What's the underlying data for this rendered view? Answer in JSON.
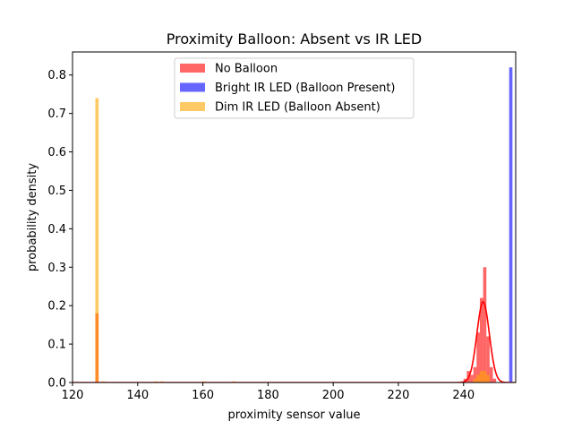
{
  "chart_data": {
    "type": "bar",
    "title": "Proximity Balloon: Absent vs IR LED",
    "xlabel": "proximity sensor value",
    "ylabel": "probability density",
    "xlim": [
      120,
      256
    ],
    "ylim": [
      0,
      0.86
    ],
    "xticks": [
      120,
      140,
      160,
      180,
      200,
      220,
      240
    ],
    "yticks": [
      0.0,
      0.1,
      0.2,
      0.3,
      0.4,
      0.5,
      0.6,
      0.7,
      0.8
    ],
    "bin_width": 1,
    "grid": false,
    "legend_position": "top-center",
    "series": [
      {
        "name": "No Balloon",
        "color": "#ff0000",
        "opacity": 0.6,
        "bins": [
          {
            "x": 127,
            "y": 0.18
          },
          {
            "x": 239,
            "y": 0.003
          },
          {
            "x": 240,
            "y": 0.01
          },
          {
            "x": 241,
            "y": 0.03
          },
          {
            "x": 242,
            "y": 0.02
          },
          {
            "x": 243,
            "y": 0.04
          },
          {
            "x": 244,
            "y": 0.13
          },
          {
            "x": 245,
            "y": 0.22
          },
          {
            "x": 246,
            "y": 0.3
          },
          {
            "x": 247,
            "y": 0.12
          },
          {
            "x": 248,
            "y": 0.04
          },
          {
            "x": 249,
            "y": 0.01
          }
        ]
      },
      {
        "name": "Bright IR LED (Balloon Present)",
        "color": "#0000ff",
        "opacity": 0.6,
        "bins": [
          {
            "x": 254,
            "y": 0.82
          }
        ]
      },
      {
        "name": "Dim IR LED (Balloon Absent)",
        "color": "#ffa500",
        "opacity": 0.6,
        "bins": [
          {
            "x": 127,
            "y": 0.74
          },
          {
            "x": 129,
            "y": 0.003
          },
          {
            "x": 145,
            "y": 0.003
          },
          {
            "x": 147,
            "y": 0.003
          },
          {
            "x": 160,
            "y": 0.003
          },
          {
            "x": 169,
            "y": 0.003
          },
          {
            "x": 243,
            "y": 0.01
          },
          {
            "x": 244,
            "y": 0.02
          },
          {
            "x": 245,
            "y": 0.03
          },
          {
            "x": 246,
            "y": 0.03
          },
          {
            "x": 247,
            "y": 0.02
          }
        ]
      }
    ],
    "overlay": {
      "type": "line",
      "color": "#ff0000",
      "stroke_width": 1.6,
      "curve": "gaussian",
      "mean": 246.0,
      "sd": 1.9,
      "amplitude": 0.21,
      "x_range": [
        120,
        256
      ]
    }
  }
}
